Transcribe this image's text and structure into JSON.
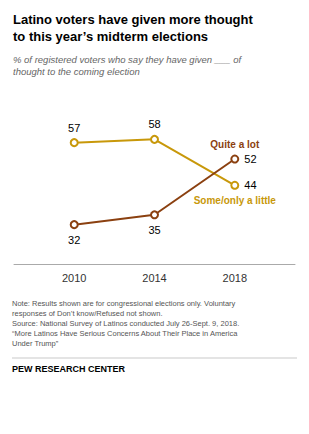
{
  "chart_data": {
    "type": "line",
    "title": "Latino voters have given more thought\nto this year’s midterm elections",
    "subtitle": "% of registered voters who say they have given ___ of\nthought to the coming election",
    "annotations": [
      "Note: Results shown are for congressional elections only. Voluntary\nresponses of Don’t know/Refused not shown.\nSource: National Survey of Latinos conducted July 26-Sept. 9, 2018.\n“More Latinos Have Serious Concerns About Their Place in America\nUnder Trump”",
      "PEW RESEARCH CENTER"
    ],
    "x": [
      2010,
      2014,
      2018
    ],
    "xlim": [
      2007,
      2021
    ],
    "xticks": [
      2010,
      2014,
      2018
    ],
    "ylim": [
      20,
      70
    ],
    "series": [
      {
        "name": "Some/only a little",
        "color": "#C8980A",
        "values": [
          57,
          58,
          44
        ]
      },
      {
        "name": "Quite a lot",
        "color": "#8B4010",
        "values": [
          32,
          35,
          52
        ]
      }
    ],
    "marker": "circle",
    "data_labels": true,
    "grid": false,
    "tick_labels": "x"
  }
}
